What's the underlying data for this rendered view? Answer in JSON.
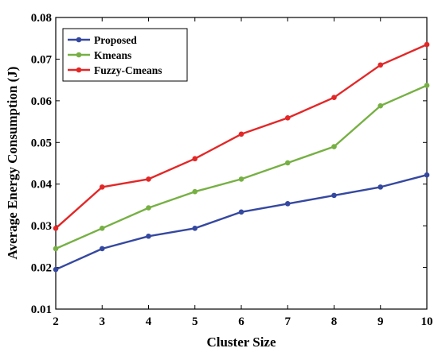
{
  "chart_data": {
    "type": "line",
    "xlabel": "Cluster Size",
    "ylabel": "Average Energy Consumption (J)",
    "x": [
      2,
      3,
      4,
      5,
      6,
      7,
      8,
      9,
      10
    ],
    "xlim": [
      2,
      10
    ],
    "ylim": [
      0.01,
      0.08
    ],
    "xticks": [
      "2",
      "3",
      "4",
      "5",
      "6",
      "7",
      "8",
      "9",
      "10"
    ],
    "yticks": [
      "0.01",
      "0.02",
      "0.03",
      "0.04",
      "0.05",
      "0.06",
      "0.07",
      "0.08"
    ],
    "ytick_values": [
      0.01,
      0.02,
      0.03,
      0.04,
      0.05,
      0.06,
      0.07,
      0.08
    ],
    "grid": false,
    "legend_position": "top-left",
    "series": [
      {
        "name": "Proposed",
        "color": "#3548a0",
        "values": [
          0.0195,
          0.0245,
          0.0275,
          0.0294,
          0.0333,
          0.0353,
          0.0373,
          0.0393,
          0.0422
        ]
      },
      {
        "name": "Kmeans",
        "color": "#76b043",
        "values": [
          0.0245,
          0.0294,
          0.0343,
          0.0382,
          0.0412,
          0.0451,
          0.049,
          0.0588,
          0.0637
        ]
      },
      {
        "name": "Fuzzy-Cmeans",
        "color": "#e32727",
        "values": [
          0.0294,
          0.0393,
          0.0412,
          0.0461,
          0.052,
          0.0559,
          0.0608,
          0.0686,
          0.0735
        ]
      }
    ]
  }
}
